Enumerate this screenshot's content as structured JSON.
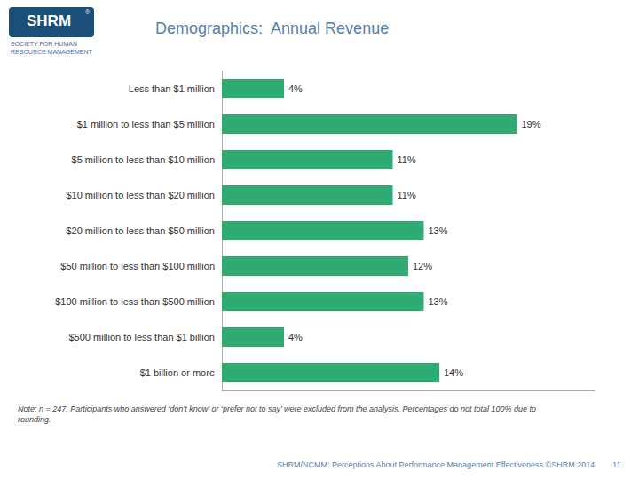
{
  "chart_data": {
    "type": "bar",
    "orientation": "horizontal",
    "title": "Demographics:  Annual Revenue",
    "categories": [
      "Less than $1 million",
      "$1 million to less than $5 million",
      "$5 million to less than $10 million",
      "$10 million to less than $20 million",
      "$20 million to less than $50 million",
      "$50 million to less than $100 million",
      "$100 million to less than $500 million",
      "$500 million to less than $1 billion",
      "$1 billion or more"
    ],
    "values": [
      4,
      19,
      11,
      11,
      13,
      12,
      13,
      4,
      14
    ],
    "value_labels": [
      "4%",
      "19%",
      "11%",
      "11%",
      "13%",
      "12%",
      "13%",
      "4%",
      "14%"
    ],
    "data_labels": true,
    "color": "#2eaa72",
    "xlim": [
      0,
      24
    ],
    "tick_labels": "y",
    "grid": false,
    "annotations": [
      "SHRM",
      "®",
      "SOCIETY FOR HUMAN\nRESOURCE MANAGEMENT",
      "Note: n = 247. Participants who answered ‘don’t know’ or ‘prefer not to say’ were excluded from the analysis. Percentages do not total 100% due to\nrounding.",
      "SHRM/NCMM: Perceptions About Performance Management Effectiveness ©SHRM 2014        11"
    ]
  }
}
